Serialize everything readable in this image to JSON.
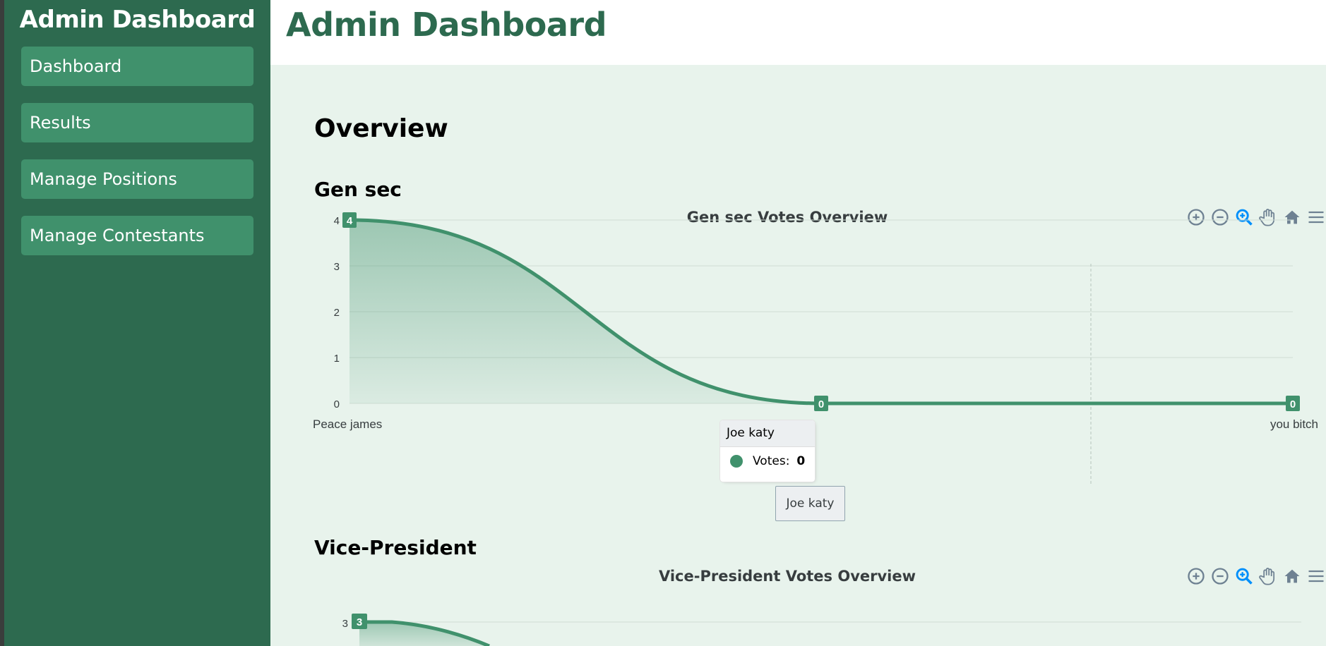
{
  "sidebar": {
    "title": "Admin Dashboard",
    "items": [
      {
        "label": "Dashboard"
      },
      {
        "label": "Results"
      },
      {
        "label": "Manage Positions"
      },
      {
        "label": "Manage Contestants"
      }
    ]
  },
  "header": {
    "title": "Admin Dashboard"
  },
  "main": {
    "overview": "Overview"
  },
  "colors": {
    "sidebar": "#2d6a4f",
    "accent": "#40916c",
    "background": "#e8f3ec"
  },
  "toolbar_icons": [
    "zoom-in-icon",
    "zoom-out-icon",
    "zoom-select-icon",
    "pan-hand-icon",
    "home-icon",
    "menu-icon"
  ],
  "chart_data": [
    {
      "section": "Gen sec",
      "type": "area",
      "title": "Gen sec Votes Overview",
      "categories": [
        "Peace james",
        "Joe katy",
        "you bitch"
      ],
      "series": [
        {
          "name": "Votes",
          "values": [
            4,
            0,
            0
          ]
        }
      ],
      "ylim": [
        0,
        4
      ],
      "yticks": [
        "0",
        "1",
        "2",
        "3",
        "4"
      ],
      "grid": true,
      "tooltip": {
        "title": "Joe katy",
        "series": "Votes:",
        "value": "0"
      },
      "xaxis_tooltip": "Joe katy"
    },
    {
      "section": "Vice-President",
      "type": "area",
      "title": "Vice-President Votes Overview",
      "series": [
        {
          "name": "Votes",
          "values": [
            3
          ]
        }
      ],
      "yticks": [
        "3"
      ],
      "grid": true
    }
  ]
}
